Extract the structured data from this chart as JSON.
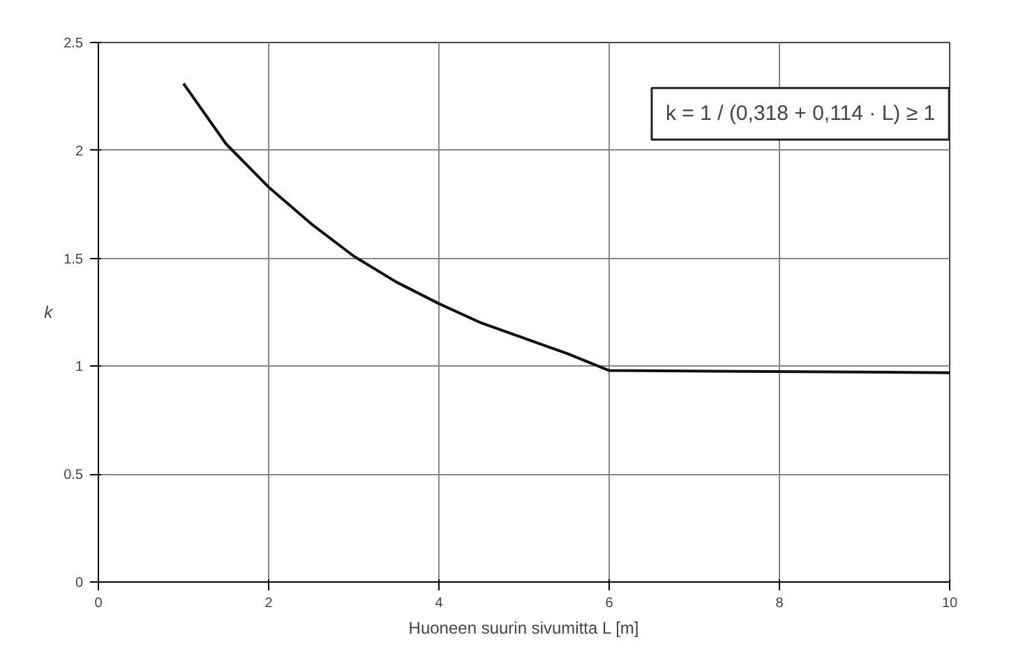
{
  "chart_data": {
    "type": "line",
    "xlabel": "Huoneen suurin sivumitta L [m]",
    "ylabel": "k",
    "annotations": [
      "k = 1 / (0,318 + 0,114 · L) ≥ 1"
    ],
    "x": [
      1,
      1.5,
      2,
      2.5,
      3,
      3.5,
      4,
      4.5,
      5,
      5.5,
      6,
      10
    ],
    "series": [
      {
        "color": "#111111",
        "values": [
          2.31,
          2.03,
          1.83,
          1.66,
          1.51,
          1.39,
          1.29,
          1.2,
          1.13,
          1.06,
          0.98,
          0.97
        ]
      }
    ],
    "xlim": [
      0,
      10
    ],
    "xticks": [
      0,
      2,
      4,
      6,
      8,
      10
    ],
    "ylim": [
      0,
      2.5
    ],
    "yticks": [
      0,
      0.5,
      1,
      1.5,
      2,
      2.5
    ],
    "grid": true,
    "marker": "none",
    "line_style": "solid"
  }
}
